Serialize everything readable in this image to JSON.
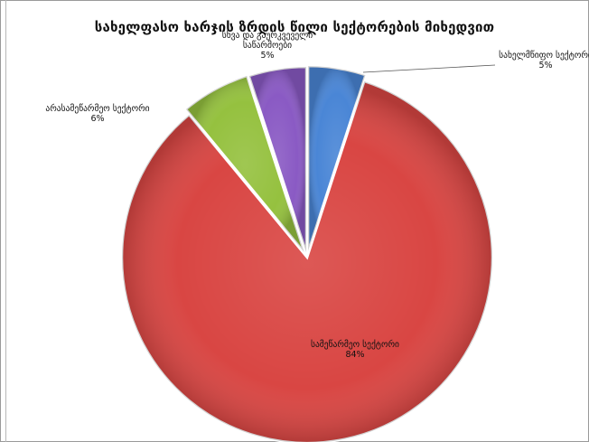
{
  "chart_data": {
    "type": "pie",
    "title": "სახელფასო ხარჯის ზრდის წილი სექტორების მიხედვით",
    "legend": "none",
    "slices": [
      {
        "label": "სახელმწიფო სექტორი",
        "value_text": "5%",
        "value": 5,
        "color": "#4a86d6"
      },
      {
        "label": "სამეწარმეო სექტორი",
        "value_text": "84%",
        "value": 84,
        "color": "#d94643"
      },
      {
        "label": "არასამეწარმეო სექტორი",
        "value_text": "6%",
        "value": 6,
        "color": "#95c13f"
      },
      {
        "label": "სხვა და გაურკვეველი საწარმოები",
        "value_text": "5%",
        "value": 5,
        "color": "#8a5ac4"
      }
    ]
  }
}
